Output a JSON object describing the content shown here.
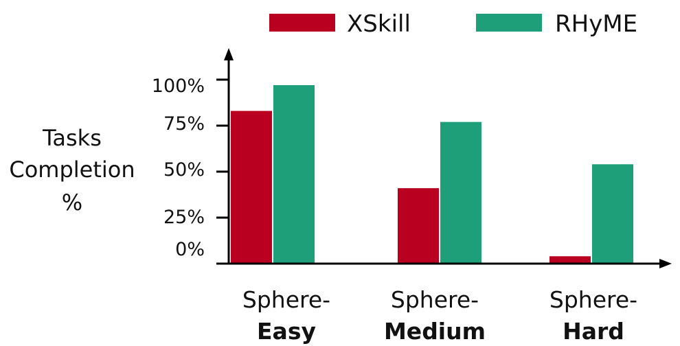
{
  "chart_data": {
    "type": "bar",
    "ylabel": [
      "Tasks",
      "Completion",
      "%"
    ],
    "y_ticks": [
      "0%",
      "25%",
      "50%",
      "75%",
      "100%"
    ],
    "ylim": [
      0,
      100
    ],
    "categories": [
      {
        "line1": "Sphere-",
        "line2": "Easy"
      },
      {
        "line1": "Sphere-",
        "line2": "Medium"
      },
      {
        "line1": "Sphere-",
        "line2": "Hard"
      }
    ],
    "series": [
      {
        "name": "XSkill",
        "color": "#b90021",
        "values": [
          83,
          41,
          4
        ]
      },
      {
        "name": "RHyME",
        "color": "#1f9e7a",
        "values": [
          97,
          77,
          54
        ]
      }
    ],
    "legend_position": "top-right",
    "grid": false
  }
}
